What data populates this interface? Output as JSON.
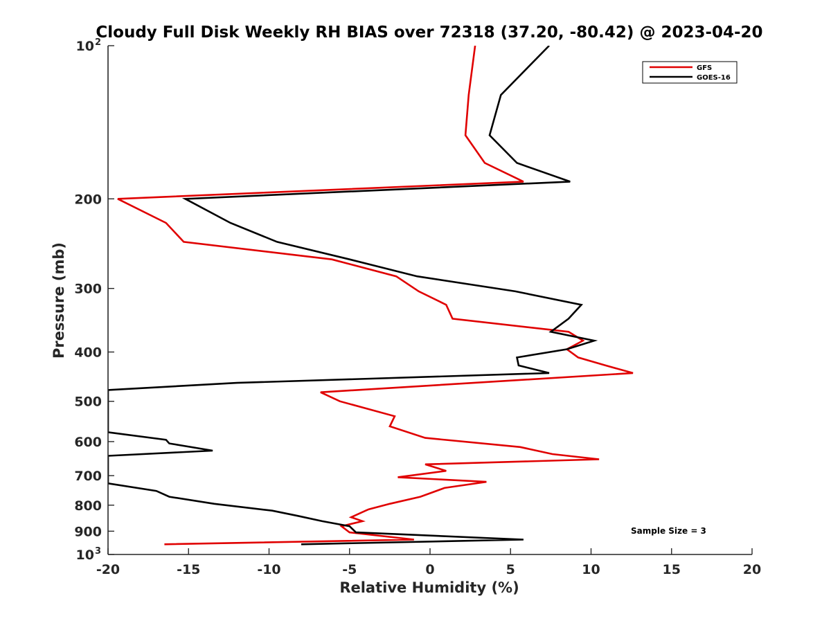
{
  "chart_data": {
    "type": "line",
    "title": "Cloudy Full Disk Weekly RH BIAS over 72318 (37.20, -80.42) @ 2023-04-20",
    "xlabel": "Relative Humidity (%)",
    "ylabel": "Pressure (mb)",
    "xlim": [
      -20,
      20
    ],
    "ylim": [
      100,
      1000
    ],
    "yscale": "log",
    "y_reversed": true,
    "xticks": [
      -20,
      -15,
      -10,
      -5,
      0,
      5,
      10,
      15,
      20
    ],
    "xtick_labels": [
      "-20",
      "-15",
      "-10",
      "-5",
      "0",
      "5",
      "10",
      "15",
      "20"
    ],
    "yticks": [
      {
        "value": 100,
        "label": "10",
        "exp": "2"
      },
      {
        "value": 200,
        "label": "200"
      },
      {
        "value": 300,
        "label": "300"
      },
      {
        "value": 400,
        "label": "400"
      },
      {
        "value": 500,
        "label": "500"
      },
      {
        "value": 600,
        "label": "600"
      },
      {
        "value": 700,
        "label": "700"
      },
      {
        "value": 800,
        "label": "800"
      },
      {
        "value": 900,
        "label": "900"
      },
      {
        "value": 1000,
        "label": "10",
        "exp": "3"
      }
    ],
    "legend_position": "top-right",
    "annotation": "Sample Size = 3",
    "series": [
      {
        "name": "GFS",
        "color": "#e00000",
        "points": [
          [
            2.8,
            100
          ],
          [
            2.4,
            125
          ],
          [
            2.2,
            150
          ],
          [
            3.4,
            170
          ],
          [
            5.8,
            185
          ],
          [
            -19.4,
            200
          ],
          [
            -16.4,
            223
          ],
          [
            -15.3,
            243
          ],
          [
            -6.1,
            263
          ],
          [
            -2.1,
            284
          ],
          [
            -0.7,
            304
          ],
          [
            1.0,
            323
          ],
          [
            1.4,
            344
          ],
          [
            8.6,
            365
          ],
          [
            9.5,
            380
          ],
          [
            8.5,
            395
          ],
          [
            9.2,
            410
          ],
          [
            10.9,
            425
          ],
          [
            12.6,
            440
          ],
          [
            -6.8,
            480
          ],
          [
            -5.6,
            500
          ],
          [
            -2.2,
            535
          ],
          [
            -2.5,
            560
          ],
          [
            -0.3,
            590
          ],
          [
            5.6,
            615
          ],
          [
            7.6,
            635
          ],
          [
            10.5,
            650
          ],
          [
            -0.3,
            665
          ],
          [
            1.0,
            685
          ],
          [
            -2.0,
            705
          ],
          [
            3.5,
            720
          ],
          [
            0.9,
            740
          ],
          [
            -0.1,
            760
          ],
          [
            -0.6,
            770
          ],
          [
            -2.5,
            795
          ],
          [
            -3.8,
            815
          ],
          [
            -4.0,
            820
          ],
          [
            -4.9,
            845
          ],
          [
            -4.2,
            860
          ],
          [
            -5.5,
            880
          ],
          [
            -5.0,
            905
          ],
          [
            -1.0,
            935
          ],
          [
            -16.5,
            955
          ]
        ]
      },
      {
        "name": "GOES-16",
        "color": "#000000",
        "points": [
          [
            7.4,
            100
          ],
          [
            4.4,
            125
          ],
          [
            3.7,
            150
          ],
          [
            5.4,
            170
          ],
          [
            8.7,
            185
          ],
          [
            -15.2,
            200
          ],
          [
            -12.4,
            223
          ],
          [
            -9.5,
            243
          ],
          [
            -5.0,
            263
          ],
          [
            -0.8,
            284
          ],
          [
            5.3,
            304
          ],
          [
            9.4,
            323
          ],
          [
            8.6,
            344
          ],
          [
            7.5,
            365
          ],
          [
            10.2,
            380
          ],
          [
            8.5,
            395
          ],
          [
            5.4,
            410
          ],
          [
            5.5,
            425
          ],
          [
            7.4,
            440
          ],
          [
            -12.0,
            460
          ],
          [
            -20.0,
            475
          ],
          [
            -20.0,
            575
          ],
          [
            -16.4,
            595
          ],
          [
            -16.2,
            605
          ],
          [
            -13.5,
            625
          ],
          [
            -20.0,
            640
          ],
          [
            -20.0,
            725
          ],
          [
            -17.0,
            750
          ],
          [
            -16.2,
            770
          ],
          [
            -13.4,
            795
          ],
          [
            -9.8,
            820
          ],
          [
            -8.2,
            840
          ],
          [
            -6.7,
            860
          ],
          [
            -5.0,
            880
          ],
          [
            -4.6,
            905
          ],
          [
            5.8,
            935
          ],
          [
            -8.0,
            955
          ]
        ]
      }
    ]
  }
}
